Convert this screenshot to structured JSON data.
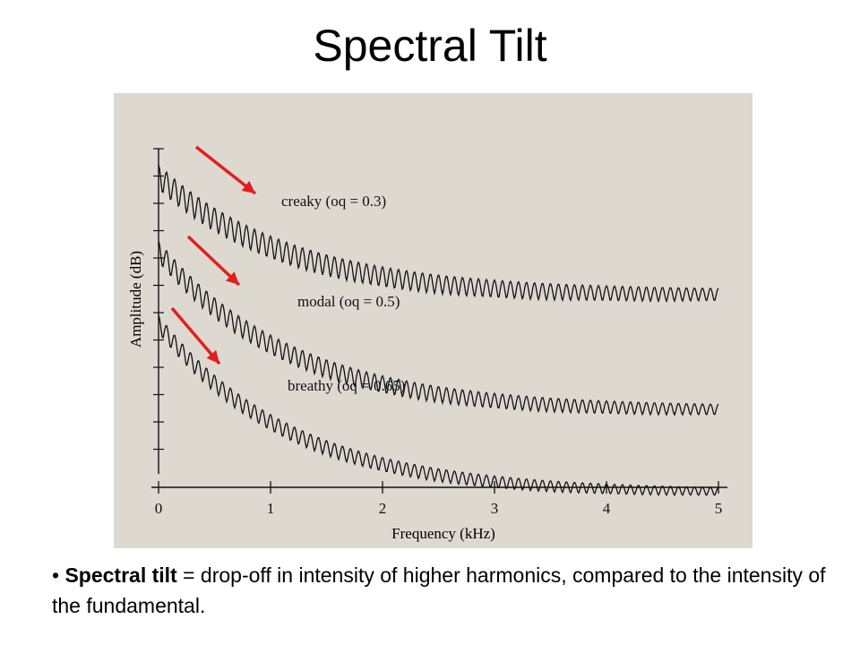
{
  "slide": {
    "title": "Spectral Tilt",
    "bullet_marker": "•",
    "bullet_term": "Spectral tilt",
    "bullet_rest": " = drop-off in intensity of higher harmonics, compared to the intensity of the fundamental."
  },
  "colors": {
    "paper": "#ddd8d0",
    "ink": "#111111",
    "arrow": "#e0201c"
  },
  "chart_data": {
    "type": "line",
    "title": "",
    "xlabel": "Frequency (kHz)",
    "ylabel": "Amplitude (dB)",
    "xlim": [
      0,
      5
    ],
    "x_ticks": [
      "0",
      "1",
      "2",
      "3",
      "4",
      "5"
    ],
    "grid": false,
    "series": [
      {
        "name": "creaky (oq = 0.3)"
      },
      {
        "name": "modal (oq = 0.5)"
      },
      {
        "name": "breathy (oq = 0.65)"
      }
    ]
  }
}
